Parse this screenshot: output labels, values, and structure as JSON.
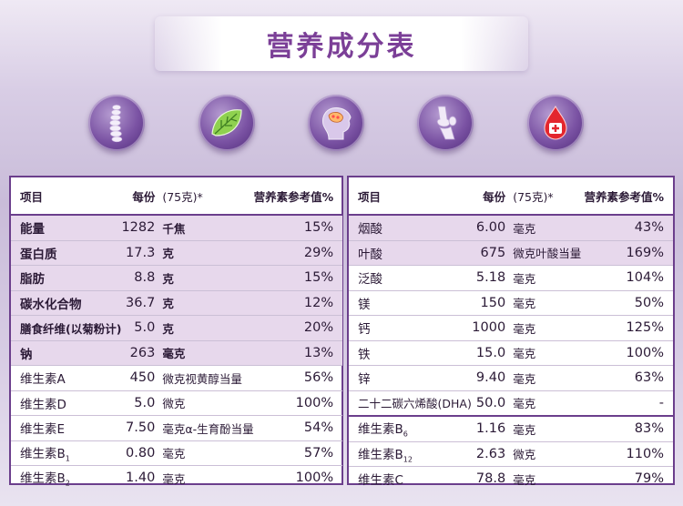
{
  "title": "营养成分表",
  "icons": [
    {
      "name": "spine-icon"
    },
    {
      "name": "leaf-icon"
    },
    {
      "name": "brain-icon"
    },
    {
      "name": "knee-joint-icon"
    },
    {
      "name": "blood-drop-icon"
    }
  ],
  "colors": {
    "accent": "#6b3e8c",
    "title": "#7b3f97",
    "shade": "#e7d8ec"
  },
  "left_table": {
    "headers": {
      "item": "项目",
      "per_serving": "每份",
      "serving_size": "(75克)*",
      "nrv": "营养素参考值%"
    },
    "rows": [
      {
        "name": "能量",
        "value": "1282",
        "unit": "千焦",
        "nrv": "15%"
      },
      {
        "name": "蛋白质",
        "value": "17.3",
        "unit": "克",
        "nrv": "29%"
      },
      {
        "name": "脂肪",
        "value": "8.8",
        "unit": "克",
        "nrv": "15%"
      },
      {
        "name": "碳水化合物",
        "value": "36.7",
        "unit": "克",
        "nrv": "12%"
      },
      {
        "name": "膳食纤维(以菊粉计)",
        "value": "5.0",
        "unit": "克",
        "nrv": "20%"
      },
      {
        "name": "钠",
        "value": "263",
        "unit": "毫克",
        "nrv": "13%"
      },
      {
        "name": "维生素A",
        "value": "450",
        "unit": "微克视黄醇当量",
        "nrv": "56%"
      },
      {
        "name": "维生素D",
        "value": "5.0",
        "unit": "微克",
        "nrv": "100%"
      },
      {
        "name": "维生素E",
        "value": "7.50",
        "unit": "毫克α-生育酚当量",
        "nrv": "54%"
      },
      {
        "name": "维生素B",
        "sub": "1",
        "value": "0.80",
        "unit": "毫克",
        "nrv": "57%"
      },
      {
        "name": "维生素B",
        "sub": "2",
        "value": "1.40",
        "unit": "毫克",
        "nrv": "100%"
      }
    ]
  },
  "right_table": {
    "headers": {
      "item": "项目",
      "per_serving": "每份",
      "serving_size": "(75克)*",
      "nrv": "营养素参考值%"
    },
    "rows": [
      {
        "name": "烟酸",
        "value": "6.00",
        "unit": "毫克",
        "nrv": "43%"
      },
      {
        "name": "叶酸",
        "value": "675",
        "unit": "微克叶酸当量",
        "nrv": "169%"
      },
      {
        "name": "泛酸",
        "value": "5.18",
        "unit": "毫克",
        "nrv": "104%"
      },
      {
        "name": "镁",
        "value": "150",
        "unit": "毫克",
        "nrv": "50%"
      },
      {
        "name": "钙",
        "value": "1000",
        "unit": "毫克",
        "nrv": "125%"
      },
      {
        "name": "铁",
        "value": "15.0",
        "unit": "毫克",
        "nrv": "100%"
      },
      {
        "name": "锌",
        "value": "9.40",
        "unit": "毫克",
        "nrv": "63%"
      },
      {
        "name": "二十二碳六烯酸(DHA)",
        "value": "50.0",
        "unit": "毫克",
        "nrv": "-"
      },
      {
        "name": "维生素B",
        "sub": "6",
        "value": "1.16",
        "unit": "毫克",
        "nrv": "83%"
      },
      {
        "name": "维生素B",
        "sub": "12",
        "value": "2.63",
        "unit": "微克",
        "nrv": "110%"
      },
      {
        "name": "维生素C",
        "value": "78.8",
        "unit": "毫克",
        "nrv": "79%"
      }
    ]
  }
}
